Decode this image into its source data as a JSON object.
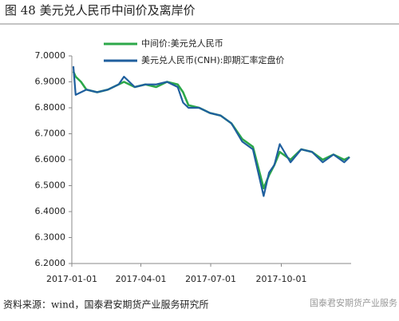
{
  "chart_data": {
    "type": "line",
    "title": "图 48 美元兑人民币中间价及离岸价",
    "source": "资料来源：wind，国泰君安期货产业服务研究所",
    "watermark": "国泰君安期货产业服务",
    "x": [
      "2017-01-03",
      "2017-01-06",
      "2017-01-13",
      "2017-01-20",
      "2017-02-03",
      "2017-02-17",
      "2017-03-03",
      "2017-03-10",
      "2017-03-24",
      "2017-04-07",
      "2017-04-21",
      "2017-05-05",
      "2017-05-19",
      "2017-05-26",
      "2017-06-02",
      "2017-06-16",
      "2017-06-30",
      "2017-07-14",
      "2017-07-28",
      "2017-08-11",
      "2017-08-25",
      "2017-09-01",
      "2017-09-08",
      "2017-09-15",
      "2017-09-22",
      "2017-09-29",
      "2017-10-13",
      "2017-10-27",
      "2017-11-10",
      "2017-11-24",
      "2017-12-08",
      "2017-12-22",
      "2017-12-29"
    ],
    "series": [
      {
        "name": "中间价:美元兑人民币",
        "color": "#2ca84a",
        "values": [
          6.94,
          6.92,
          6.9,
          6.87,
          6.86,
          6.87,
          6.89,
          6.9,
          6.88,
          6.89,
          6.88,
          6.9,
          6.89,
          6.86,
          6.81,
          6.8,
          6.78,
          6.77,
          6.74,
          6.68,
          6.65,
          6.57,
          6.49,
          6.54,
          6.58,
          6.63,
          6.6,
          6.64,
          6.63,
          6.6,
          6.62,
          6.6,
          6.61
        ]
      },
      {
        "name": "美元兑人民币(CNH):即期汇率定盘价",
        "color": "#1f5f9e",
        "values": [
          6.96,
          6.85,
          6.86,
          6.87,
          6.86,
          6.87,
          6.89,
          6.92,
          6.88,
          6.89,
          6.89,
          6.9,
          6.88,
          6.82,
          6.8,
          6.8,
          6.78,
          6.77,
          6.74,
          6.67,
          6.64,
          6.55,
          6.46,
          6.55,
          6.58,
          6.66,
          6.59,
          6.64,
          6.63,
          6.59,
          6.62,
          6.59,
          6.61
        ]
      }
    ],
    "xlim": [
      "2017-01-01",
      "2017-12-31"
    ],
    "xticks": [
      "2017-01-01",
      "2017-04-01",
      "2017-07-01",
      "2017-10-01"
    ],
    "ylim": [
      6.2,
      7.0
    ],
    "yticks": [
      {
        "value": 6.2,
        "label": "6.2000"
      },
      {
        "value": 6.3,
        "label": "6.3000"
      },
      {
        "value": 6.4,
        "label": "6.4000"
      },
      {
        "value": 6.5,
        "label": "6.5000"
      },
      {
        "value": 6.6,
        "label": "6.6000"
      },
      {
        "value": 6.7,
        "label": "6.7000"
      },
      {
        "value": 6.8,
        "label": "6.8000"
      },
      {
        "value": 6.9,
        "label": "6.9000"
      },
      {
        "value": 7.0,
        "label": "7.0000"
      }
    ]
  }
}
